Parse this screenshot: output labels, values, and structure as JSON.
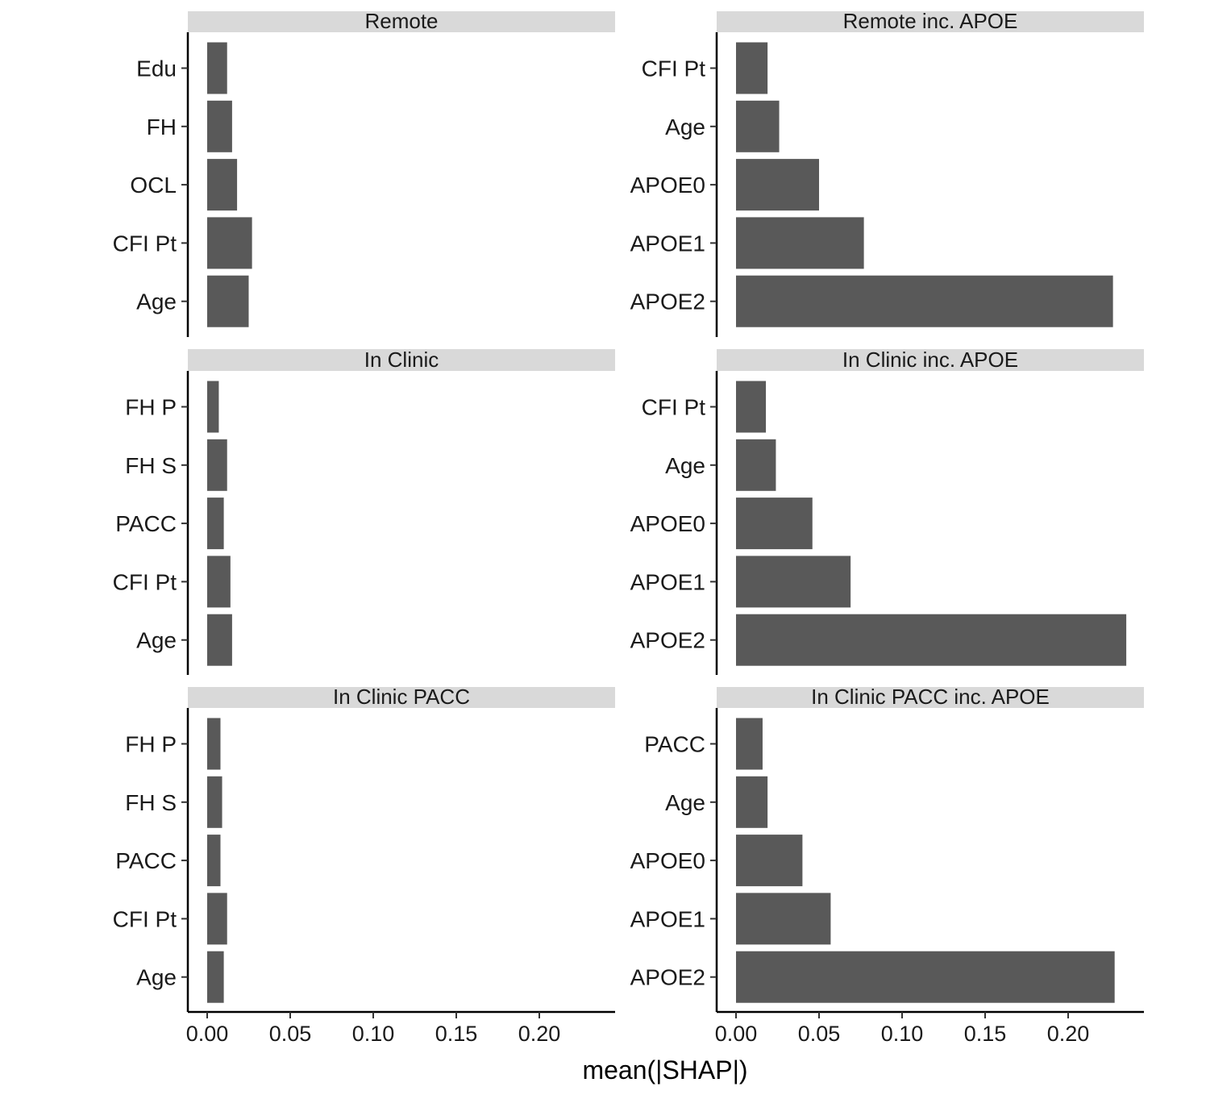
{
  "chart_data": {
    "type": "bar",
    "orientation": "horizontal",
    "layout": "facet grid, 3 rows x 2 columns, shared x-axis",
    "xlabel": "mean(|SHAP|)",
    "xticks": [
      "0.00",
      "0.05",
      "0.10",
      "0.15",
      "0.20"
    ],
    "xlim": [
      -0.012,
      0.246
    ],
    "bar_color": "#595959",
    "strip_color": "#d9d9d9",
    "panels": [
      {
        "title": "Remote",
        "categories": [
          "Edu",
          "FH",
          "OCL",
          "CFI Pt",
          "Age"
        ],
        "values": [
          0.012,
          0.015,
          0.018,
          0.027,
          0.025
        ]
      },
      {
        "title": "Remote inc. APOE",
        "categories": [
          "CFI Pt",
          "Age",
          "APOE0",
          "APOE1",
          "APOE2"
        ],
        "values": [
          0.019,
          0.026,
          0.05,
          0.077,
          0.227
        ]
      },
      {
        "title": "In Clinic",
        "categories": [
          "FH P",
          "FH S",
          "PACC",
          "CFI Pt",
          "Age"
        ],
        "values": [
          0.007,
          0.012,
          0.01,
          0.014,
          0.015
        ]
      },
      {
        "title": "In Clinic inc. APOE",
        "categories": [
          "CFI Pt",
          "Age",
          "APOE0",
          "APOE1",
          "APOE2"
        ],
        "values": [
          0.018,
          0.024,
          0.046,
          0.069,
          0.235
        ]
      },
      {
        "title": "In Clinic PACC",
        "categories": [
          "FH P",
          "FH S",
          "PACC",
          "CFI Pt",
          "Age"
        ],
        "values": [
          0.008,
          0.009,
          0.008,
          0.012,
          0.01
        ]
      },
      {
        "title": "In Clinic PACC inc. APOE",
        "categories": [
          "PACC",
          "Age",
          "APOE0",
          "APOE1",
          "APOE2"
        ],
        "values": [
          0.016,
          0.019,
          0.04,
          0.057,
          0.228
        ]
      }
    ]
  }
}
